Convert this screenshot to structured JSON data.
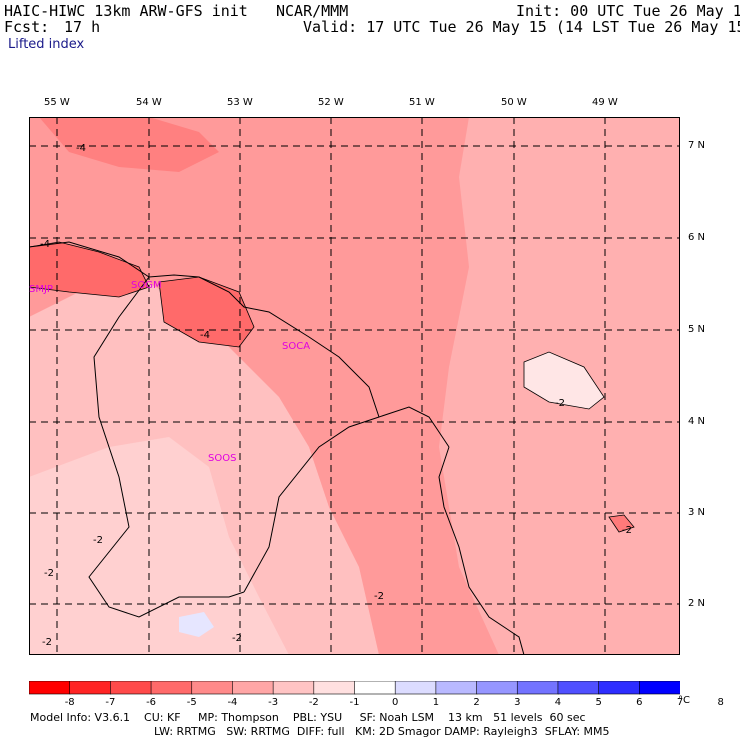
{
  "header": {
    "model": "HAIC-HIWC 13km ARW-GFS init",
    "org": "NCAR/MMM",
    "init": "Init: 00 UTC Tue 26 May 15",
    "fcst_label": "Fcst:",
    "fcst_value": "17 h",
    "valid": "Valid: 17 UTC Tue 26 May 15 (14 LST Tue 26 May 15)",
    "field": "Lifted index"
  },
  "longitudes": [
    "55 W",
    "54 W",
    "53 W",
    "52 W",
    "51 W",
    "50 W",
    "49 W"
  ],
  "latitudes": [
    "7 N",
    "6 N",
    "5 N",
    "4 N",
    "3 N",
    "2 N"
  ],
  "stations": [
    "SMJP",
    "SOGM",
    "SOCA",
    "SOOS"
  ],
  "contour_labels": [
    "-4",
    "-4",
    "-4",
    "-2",
    "-2",
    "-2",
    "-2",
    "-2",
    "-2",
    "-2"
  ],
  "colorbar": {
    "unit": "°C",
    "ticks": [
      "-8",
      "-7",
      "-6",
      "-5",
      "-4",
      "-3",
      "-2",
      "-1",
      "0",
      "1",
      "2",
      "3",
      "4",
      "5",
      "6",
      "7",
      "8"
    ],
    "colors": [
      "#ff0000",
      "#ff2424",
      "#ff4a4a",
      "#ff6a6a",
      "#ff8a8a",
      "#ffa6a6",
      "#ffc4c4",
      "#ffe0e0",
      "#ffffff",
      "#dcdcff",
      "#b9b9ff",
      "#9696ff",
      "#7373ff",
      "#5050ff",
      "#2d2dff",
      "#0000ff"
    ]
  },
  "footer": {
    "line1": "Model Info: V3.6.1    CU: KF     MP: Thompson    PBL: YSU     SF: Noah LSM    13 km   51 levels  60 sec",
    "line2": "LW: RRTMG   SW: RRTMG  DIFF: full   KM: 2D Smagor DAMP: Rayleigh3  SFLAY: MM5"
  },
  "colors": {
    "station": "#e000e0",
    "contour": "#000000",
    "grid": "#000000"
  }
}
